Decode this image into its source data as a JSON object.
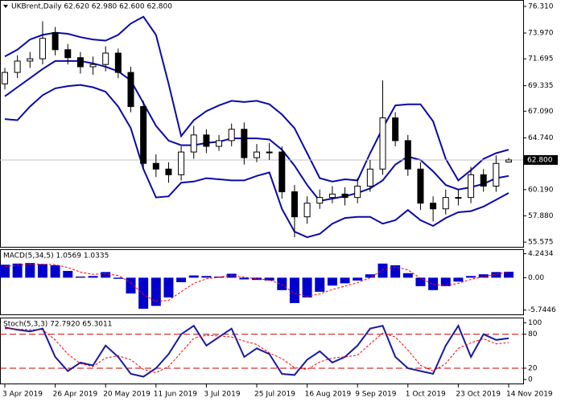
{
  "chart_data": [
    {
      "type": "candlestick",
      "title": "UKBrent,Daily 62.620 62.980 62.600 62.800",
      "open": [
        69.5,
        70.5,
        71.5,
        71.7,
        74.0,
        72.5,
        71.8,
        71.0,
        71.2,
        72.2,
        70.5,
        67.5,
        62.5,
        62.0,
        61.5,
        63.5,
        65.0,
        64.0,
        64.5,
        65.5,
        63.0,
        63.5,
        63.5,
        60.0,
        57.8,
        59.0,
        59.5,
        59.8,
        59.5,
        60.5,
        62.0,
        66.5,
        64.5,
        62.0,
        59.0,
        58.5,
        59.5,
        59.5,
        61.5,
        60.5,
        62.62
      ],
      "high": [
        70.9,
        72.0,
        72.3,
        75.0,
        74.5,
        73.0,
        72.3,
        71.9,
        72.8,
        72.6,
        71.0,
        68.0,
        63.3,
        62.6,
        64.0,
        65.8,
        65.5,
        65.0,
        66.0,
        66.1,
        64.2,
        64.3,
        64.0,
        60.6,
        59.6,
        60.2,
        60.5,
        60.4,
        61.2,
        62.8,
        69.8,
        67.0,
        65.0,
        62.6,
        59.6,
        60.2,
        60.2,
        62.2,
        62.0,
        63.2,
        62.98
      ],
      "low": [
        69.0,
        70.0,
        70.9,
        71.2,
        72.0,
        71.2,
        70.4,
        70.3,
        70.6,
        70.0,
        67.0,
        62.0,
        61.3,
        60.8,
        61.0,
        62.9,
        63.4,
        63.6,
        64.0,
        62.4,
        62.6,
        62.8,
        59.4,
        56.0,
        57.2,
        58.5,
        59.0,
        58.8,
        59.0,
        60.0,
        61.5,
        64.0,
        61.4,
        58.4,
        57.4,
        58.0,
        58.8,
        59.0,
        60.0,
        60.0,
        62.6
      ],
      "close": [
        70.5,
        71.5,
        71.7,
        73.5,
        72.5,
        71.8,
        71.0,
        71.2,
        72.2,
        70.5,
        67.5,
        62.5,
        62.0,
        61.5,
        63.5,
        65.0,
        64.0,
        64.5,
        65.5,
        63.0,
        63.5,
        63.5,
        60.0,
        57.8,
        59.0,
        59.5,
        59.8,
        59.5,
        60.5,
        62.0,
        66.5,
        64.5,
        62.0,
        59.0,
        58.5,
        59.5,
        59.5,
        61.5,
        60.5,
        62.5,
        62.8
      ],
      "up_color": "#ffffff",
      "down_color": "#000000",
      "series": [
        {
          "color": "#0a0aa8",
          "values": [
            71.9,
            72.5,
            73.4,
            73.8,
            74.0,
            73.9,
            73.6,
            73.4,
            73.3,
            73.8,
            74.8,
            75.4,
            73.8,
            69.5,
            64.9,
            66.3,
            67.1,
            67.6,
            68.0,
            67.9,
            68.0,
            67.7,
            66.8,
            65.6,
            63.4,
            61.2,
            60.9,
            61.1,
            61.0,
            63.4,
            65.6,
            67.6,
            67.7,
            67.7,
            66.2,
            62.9,
            61.0,
            61.9,
            62.9,
            63.4,
            63.7
          ]
        },
        {
          "color": "#0a0aa8",
          "values": [
            68.4,
            69.2,
            70.0,
            70.8,
            71.5,
            71.5,
            71.5,
            71.3,
            71.0,
            70.6,
            69.8,
            67.8,
            65.8,
            64.5,
            64.1,
            64.1,
            64.3,
            64.4,
            64.7,
            64.7,
            64.7,
            64.6,
            63.7,
            62.3,
            60.6,
            59.2,
            59.4,
            59.6,
            59.9,
            60.3,
            61.0,
            62.4,
            63.1,
            62.8,
            61.8,
            60.6,
            60.2,
            60.4,
            60.7,
            61.2,
            61.4
          ]
        },
        {
          "color": "#0a0aa8",
          "values": [
            66.4,
            66.3,
            67.5,
            68.5,
            69.1,
            69.3,
            69.4,
            69.2,
            68.8,
            67.5,
            65.6,
            62.0,
            59.5,
            59.6,
            60.8,
            60.9,
            61.2,
            61.1,
            61.0,
            61.0,
            61.4,
            61.7,
            58.5,
            56.5,
            56.0,
            56.3,
            57.2,
            57.7,
            57.8,
            57.8,
            57.2,
            57.5,
            58.4,
            57.5,
            57.0,
            57.7,
            58.2,
            58.3,
            58.7,
            59.3,
            59.9
          ]
        }
      ],
      "last_price": {
        "value": 62.8,
        "label": "62.800"
      },
      "ylim": [
        55.16,
        76.8
      ],
      "yticks": [
        {
          "value": 76.31,
          "label": "76.310"
        },
        {
          "value": 73.97,
          "label": "73.970"
        },
        71.695,
        69.335,
        {
          "value": 67.09,
          "label": "67.090"
        },
        {
          "value": 64.74,
          "label": "64.740"
        },
        {
          "value": 60.19,
          "label": "60.190"
        },
        {
          "value": 57.88,
          "label": "57.880"
        },
        55.575
      ]
    },
    {
      "type": "macd",
      "title": "MACD(5,34,5) 1.0569 1.0335",
      "series": [
        {
          "style": "bar",
          "color": "#0000cd",
          "values": [
            2.3,
            2.5,
            2.6,
            2.4,
            2.2,
            1.2,
            0.2,
            0.3,
            1.0,
            -0.2,
            -2.8,
            -5.5,
            -5.0,
            -3.5,
            -0.8,
            0.4,
            0.3,
            0.2,
            0.7,
            -0.3,
            -0.4,
            -0.5,
            -2.2,
            -4.5,
            -3.5,
            -2.5,
            -1.4,
            -1.0,
            -0.5,
            0.6,
            2.5,
            2.2,
            0.8,
            -1.5,
            -2.2,
            -1.5,
            -0.7,
            0.3,
            0.6,
            1.0,
            1.0569
          ]
        },
        {
          "style": "dashed",
          "color": "#ff0000",
          "values": [
            2.0,
            2.2,
            2.4,
            2.4,
            2.3,
            1.8,
            1.0,
            0.6,
            0.7,
            0.4,
            -0.9,
            -3.0,
            -4.2,
            -4.0,
            -2.5,
            -1.0,
            -0.2,
            0.1,
            0.4,
            0.1,
            -0.2,
            -0.4,
            -1.2,
            -2.8,
            -3.3,
            -2.9,
            -2.1,
            -1.5,
            -0.9,
            0.0,
            1.4,
            1.9,
            1.4,
            -0.1,
            -1.2,
            -1.4,
            -1.0,
            -0.3,
            0.2,
            0.6,
            1.0335
          ]
        }
      ],
      "ylim": [
        -6.5,
        4.9
      ],
      "yticks": [
        4.2434,
        {
          "value": 0,
          "label": "0.00"
        },
        -5.7446
      ]
    },
    {
      "type": "stochastic",
      "title": "Stoch(5,3,3) 72.7920 65.3011",
      "categories": [
        "3 Apr 2019",
        null,
        null,
        null,
        "26 Apr 2019",
        null,
        null,
        null,
        "20 May 2019",
        null,
        null,
        null,
        "11 Jun 2019",
        null,
        null,
        null,
        "3 Jul 2019",
        null,
        null,
        null,
        "25 Jul 2019",
        null,
        null,
        null,
        "16 Aug 2019",
        null,
        null,
        null,
        "9 Sep 2019",
        null,
        null,
        null,
        "1 Oct 2019",
        null,
        null,
        null,
        "23 Oct 2019",
        null,
        null,
        null,
        "14 Nov 2019"
      ],
      "series": [
        {
          "style": "solid",
          "color": "#1a1aa0",
          "values": [
            92,
            88,
            85,
            90,
            40,
            15,
            30,
            25,
            60,
            40,
            10,
            5,
            20,
            45,
            80,
            95,
            60,
            75,
            90,
            40,
            55,
            45,
            10,
            8,
            35,
            50,
            30,
            40,
            60,
            90,
            95,
            40,
            20,
            15,
            10,
            60,
            95,
            40,
            80,
            70,
            72.792
          ]
        },
        {
          "style": "dashed",
          "color": "#ff0000",
          "values": [
            90,
            89,
            88,
            88,
            70,
            45,
            28,
            23,
            38,
            42,
            35,
            18,
            12,
            23,
            48,
            73,
            78,
            77,
            75,
            68,
            62,
            47,
            37,
            21,
            18,
            31,
            38,
            40,
            43,
            63,
            82,
            75,
            52,
            25,
            15,
            28,
            55,
            65,
            72,
            63,
            65.3011
          ]
        }
      ],
      "levels": [
        80,
        20
      ],
      "level_color": "#c00000",
      "ylim": [
        -7,
        108
      ],
      "yticks": [
        100,
        80,
        20,
        0
      ]
    }
  ]
}
